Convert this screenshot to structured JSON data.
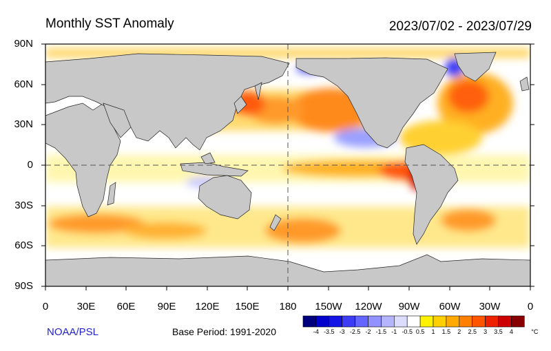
{
  "header": {
    "title": "Monthly SST Anomaly",
    "period": "2023/07/02 - 2023/07/29"
  },
  "map": {
    "type": "world sea surface temperature anomaly",
    "projection": "cylindrical equidistant, 0 to 360 longitude",
    "lat_labels": [
      "90N",
      "60N",
      "30N",
      "0",
      "30S",
      "60S",
      "90S"
    ],
    "lon_labels": [
      "0",
      "30E",
      "60E",
      "90E",
      "120E",
      "150E",
      "180",
      "150W",
      "120W",
      "90W",
      "60W",
      "30W",
      "0"
    ],
    "land_color": "#c8c8c8",
    "reference_lines": [
      "equator dashed",
      "180 meridian dashed"
    ]
  },
  "colorbar": {
    "unit": "°C",
    "labels": [
      "-4",
      "-3.5",
      "-3",
      "-2.5",
      "-2",
      "-1.5",
      "-1",
      "-0.5",
      "0.5",
      "1",
      "1.5",
      "2",
      "2.5",
      "3",
      "3.5",
      "4"
    ],
    "colors": [
      "#00007f",
      "#0000cc",
      "#1414e6",
      "#3c3cf5",
      "#6464ff",
      "#9191ff",
      "#b4b4ff",
      "#dcdcff",
      "#ffffff",
      "#fff200",
      "#ffd000",
      "#ffaa00",
      "#ff8000",
      "#ff5500",
      "#ee2200",
      "#cc0000",
      "#880000"
    ]
  },
  "footer": {
    "credit": "NOAA/PSL",
    "base_period": "Base Period: 1991-2020"
  }
}
